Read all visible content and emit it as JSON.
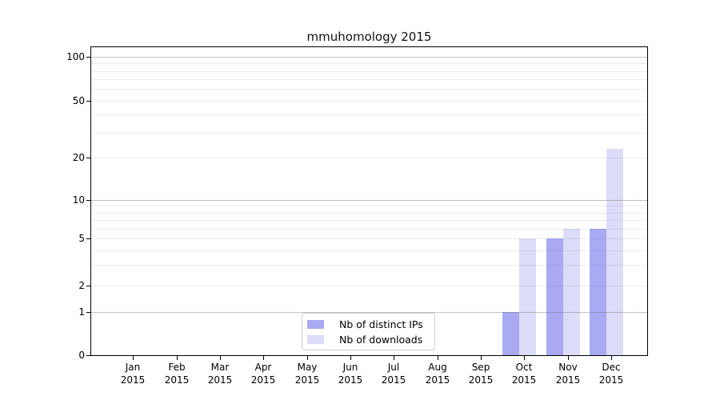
{
  "chart_data": {
    "type": "bar",
    "title": "mmuhomology 2015",
    "categories": [
      "Jan\n2015",
      "Feb\n2015",
      "Mar\n2015",
      "Apr\n2015",
      "May\n2015",
      "Jun\n2015",
      "Jul\n2015",
      "Aug\n2015",
      "Sep\n2015",
      "Oct\n2015",
      "Nov\n2015",
      "Dec\n2015"
    ],
    "series": [
      {
        "name": "Nb of distinct IPs",
        "color": "#a9a9f4",
        "values": [
          0,
          0,
          0,
          0,
          0,
          0,
          0,
          0,
          0,
          1,
          5,
          6
        ]
      },
      {
        "name": "Nb of downloads",
        "color": "#dcdcf8",
        "values": [
          0,
          0,
          0,
          0,
          0,
          0,
          0,
          0,
          0,
          5,
          6,
          23
        ]
      }
    ],
    "xlabel": "",
    "ylabel": "",
    "yscale": "log-with-zero",
    "ytick_labels": [
      "100",
      "50",
      "20",
      "10",
      "5",
      "2",
      "1",
      "0"
    ],
    "yticks": [
      100,
      50,
      20,
      10,
      5,
      2,
      1,
      0
    ],
    "ylim": [
      0,
      120
    ],
    "grid": "on",
    "legend_position": "lower center"
  },
  "colors": {
    "bar_distinct_ips": "#a9a9f4",
    "bar_downloads": "#dcdcf8",
    "grid_major": "rgba(110,110,110,0.42)",
    "grid_minor": "rgba(110,110,110,0.13)",
    "axis": "#000000",
    "legend_border": "#cccccc",
    "text": "#000000",
    "background": "#ffffff"
  }
}
